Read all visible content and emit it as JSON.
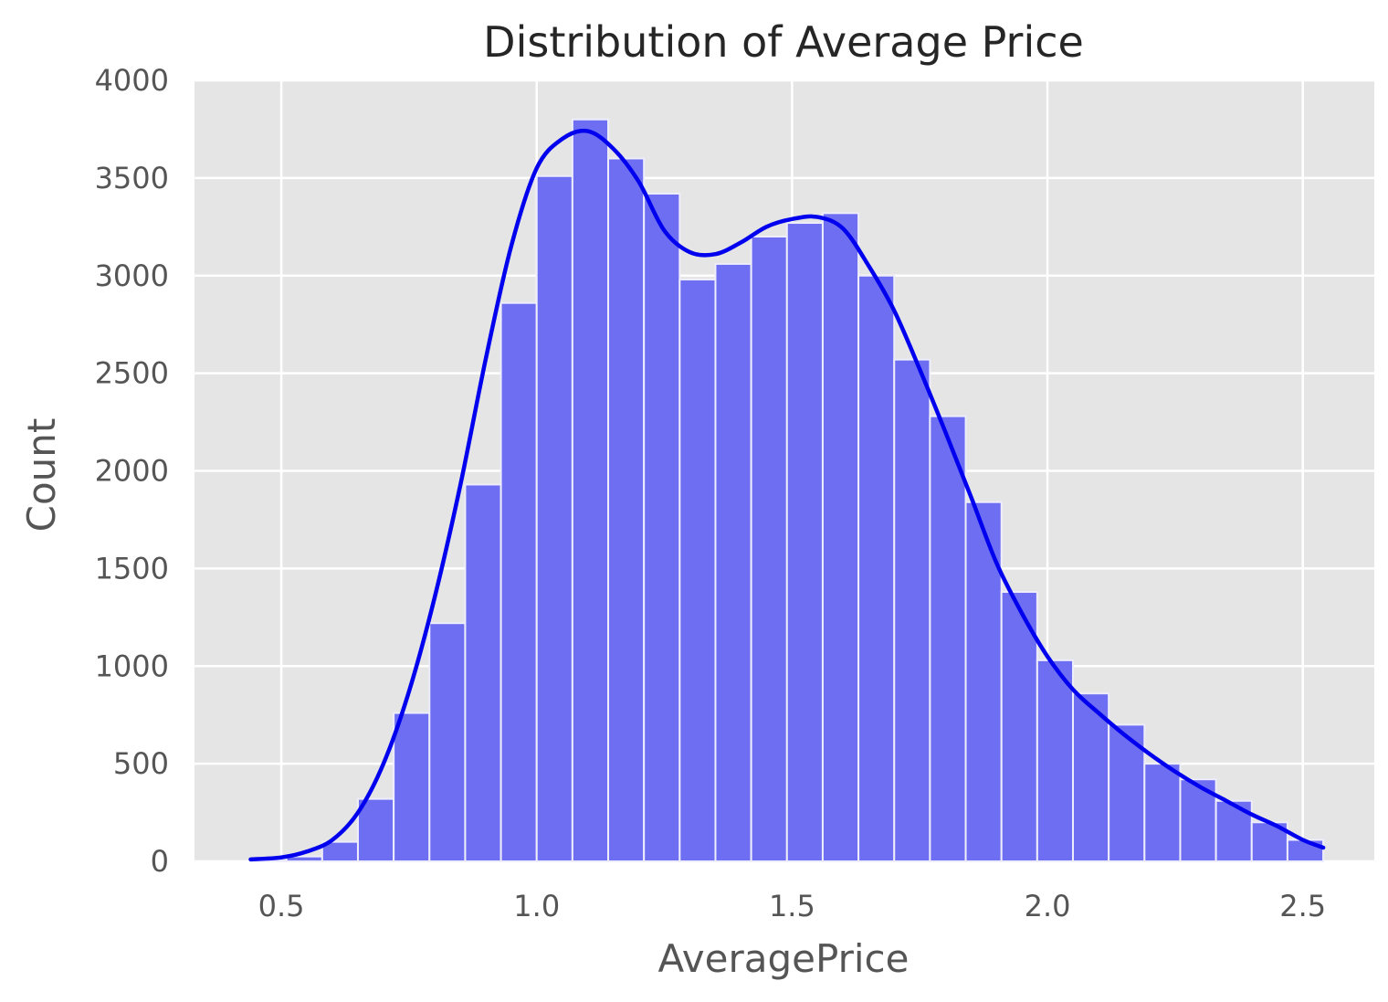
{
  "chart_data": {
    "type": "bar",
    "title": "Distribution of Average Price",
    "xlabel": "AveragePrice",
    "ylabel": "Count",
    "xlim": [
      0.33,
      2.64
    ],
    "ylim": [
      0,
      4000
    ],
    "xticks": [
      0.5,
      1.0,
      1.5,
      2.0,
      2.5
    ],
    "xtick_labels": [
      "0.5",
      "1.0",
      "1.5",
      "2.0",
      "2.5"
    ],
    "yticks": [
      0,
      500,
      1000,
      1500,
      2000,
      2500,
      3000,
      3500,
      4000
    ],
    "ytick_labels": [
      "0",
      "500",
      "1000",
      "1500",
      "2000",
      "2500",
      "3000",
      "3500",
      "4000"
    ],
    "grid": true,
    "bins": {
      "edges": [
        0.44,
        0.51,
        0.58,
        0.65,
        0.72,
        0.79,
        0.86,
        0.93,
        1.0,
        1.07,
        1.14,
        1.21,
        1.28,
        1.35,
        1.42,
        1.49,
        1.56,
        1.63,
        1.7,
        1.77,
        1.84,
        1.91,
        1.98,
        2.05,
        2.12,
        2.19,
        2.26,
        2.33,
        2.4,
        2.47,
        2.54
      ],
      "counts": [
        10,
        25,
        100,
        320,
        760,
        1220,
        1930,
        2860,
        3510,
        3800,
        3600,
        3420,
        2980,
        3060,
        3200,
        3270,
        3320,
        3000,
        2570,
        2280,
        1840,
        1380,
        1030,
        860,
        700,
        500,
        420,
        310,
        200,
        110
      ]
    },
    "kde": {
      "x": [
        0.44,
        0.5,
        0.55,
        0.6,
        0.65,
        0.7,
        0.75,
        0.8,
        0.85,
        0.9,
        0.95,
        1.0,
        1.05,
        1.1,
        1.15,
        1.2,
        1.25,
        1.3,
        1.35,
        1.4,
        1.45,
        1.5,
        1.55,
        1.6,
        1.65,
        1.7,
        1.75,
        1.8,
        1.85,
        1.9,
        1.95,
        2.0,
        2.05,
        2.1,
        2.15,
        2.2,
        2.25,
        2.3,
        2.35,
        2.4,
        2.45,
        2.5,
        2.54
      ],
      "y": [
        10,
        20,
        50,
        110,
        250,
        500,
        870,
        1350,
        1920,
        2570,
        3150,
        3550,
        3700,
        3740,
        3650,
        3480,
        3230,
        3120,
        3110,
        3170,
        3250,
        3290,
        3300,
        3240,
        3050,
        2820,
        2520,
        2200,
        1870,
        1530,
        1270,
        1050,
        880,
        760,
        650,
        550,
        460,
        380,
        310,
        240,
        180,
        110,
        70
      ]
    },
    "bar_color": "#6E6EF2",
    "kde_color": "#0000EE",
    "background_color": "#E5E5E5",
    "grid_color": "#FFFFFF"
  }
}
